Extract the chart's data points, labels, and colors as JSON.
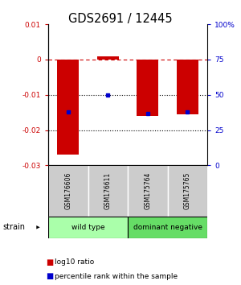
{
  "title": "GDS2691 / 12445",
  "samples": [
    "GSM176606",
    "GSM176611",
    "GSM175764",
    "GSM175765"
  ],
  "log10_ratio": [
    -0.027,
    0.001,
    -0.016,
    -0.0155
  ],
  "percentile_rank": [
    0.38,
    0.5,
    0.365,
    0.38
  ],
  "groups": [
    {
      "label": "wild type",
      "indices": [
        0,
        1
      ],
      "color": "#aaffaa"
    },
    {
      "label": "dominant negative",
      "indices": [
        2,
        3
      ],
      "color": "#66dd66"
    }
  ],
  "ylim_left": [
    -0.03,
    0.01
  ],
  "yticks_left": [
    -0.03,
    -0.02,
    -0.01,
    0,
    0.01
  ],
  "ytick_left_labels": [
    "-0.03",
    "-0.02",
    "-0.01",
    "0",
    "0.01"
  ],
  "yticks_right_vals": [
    0.0,
    0.25,
    0.5,
    0.75,
    1.0
  ],
  "yticks_right_labels": [
    "0",
    "25",
    "50",
    "75",
    "100%"
  ],
  "dotted_lines": [
    -0.01,
    -0.02
  ],
  "bar_color": "#cc0000",
  "dot_color": "#0000cc",
  "bar_width": 0.55,
  "left_tick_color": "#cc0000",
  "right_tick_color": "#0000cc",
  "strain_label": "strain",
  "legend_bar_label": "log10 ratio",
  "legend_dot_label": "percentile rank within the sample",
  "sample_area_color": "#cccccc",
  "wt_color": "#aaffaa",
  "dn_color": "#66dd66"
}
